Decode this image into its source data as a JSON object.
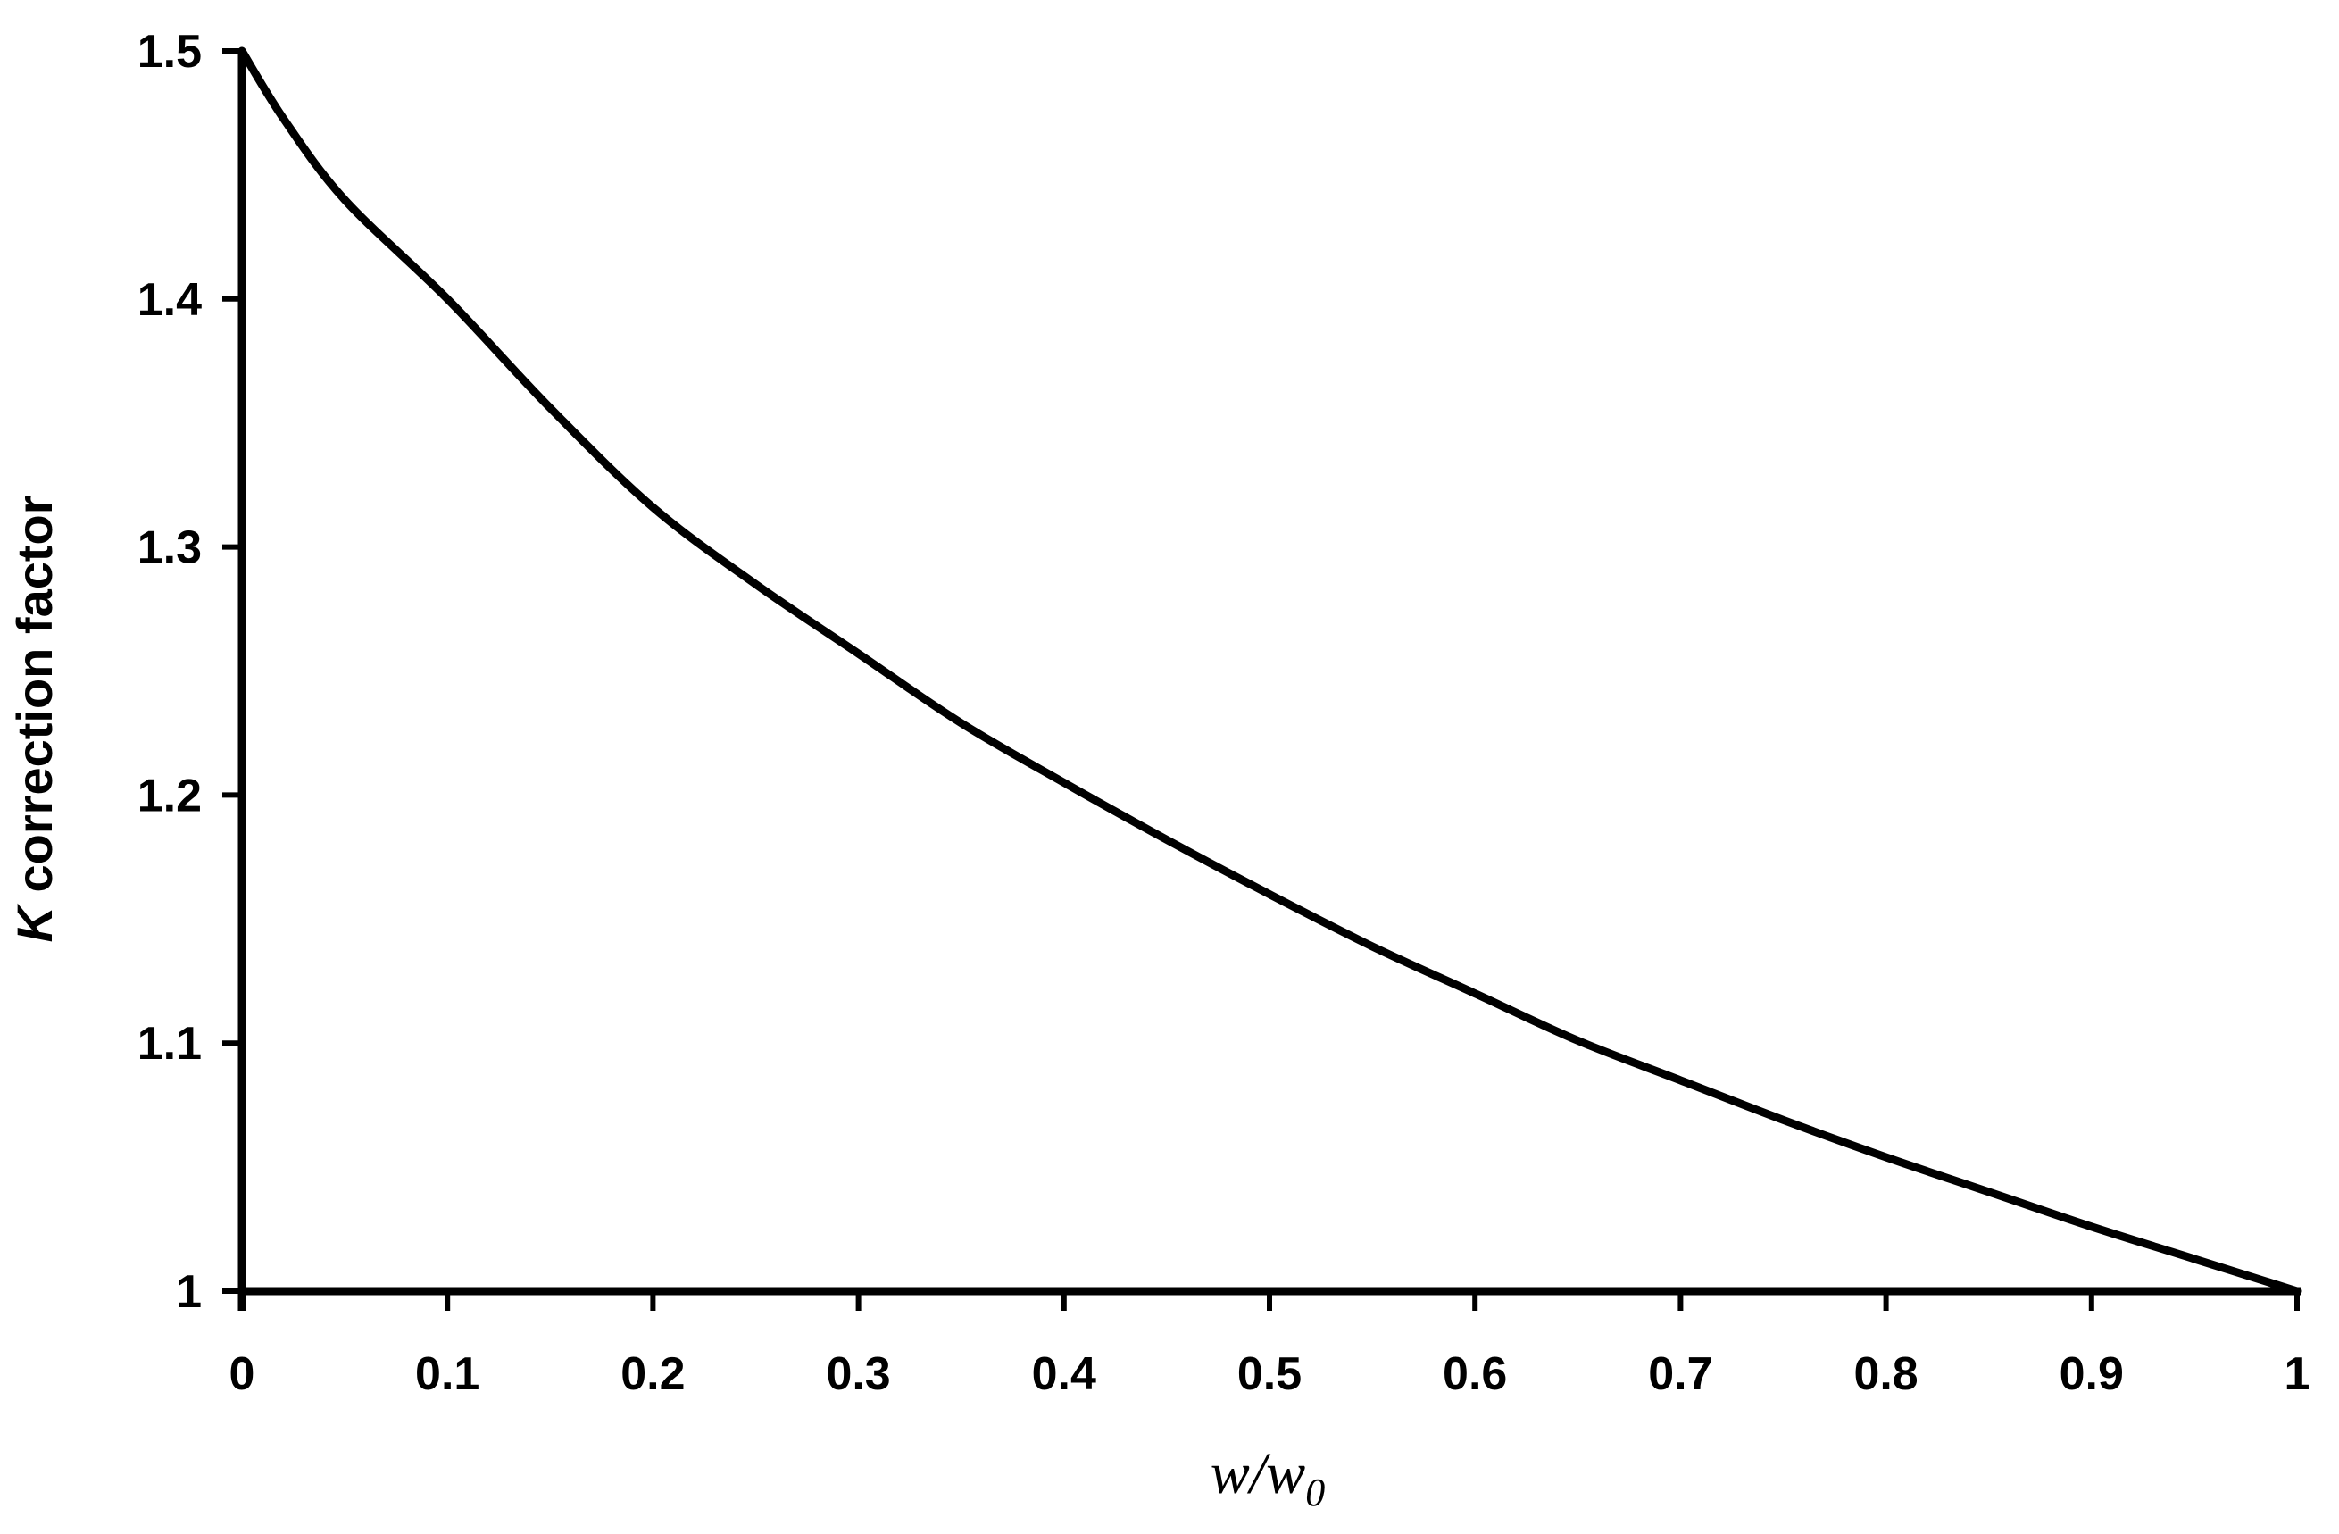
{
  "chart_data": {
    "type": "line",
    "title": "",
    "xlabel": {
      "base": "w/w",
      "subscript": "0"
    },
    "ylabel": {
      "symbol": "K",
      "text": " correction factor"
    },
    "xlim": [
      0,
      1
    ],
    "ylim": [
      1,
      1.5
    ],
    "xticks": [
      "0",
      "0.1",
      "0.2",
      "0.3",
      "0.4",
      "0.5",
      "0.6",
      "0.7",
      "0.8",
      "0.9",
      "1"
    ],
    "yticks": [
      "1",
      "1.1",
      "1.2",
      "1.3",
      "1.4",
      "1.5"
    ],
    "grid": false,
    "legend": "none",
    "line_color": "#000000",
    "series": [
      {
        "x": [
          0,
          0.02,
          0.05,
          0.1,
          0.15,
          0.2,
          0.25,
          0.3,
          0.35,
          0.4,
          0.45,
          0.5,
          0.55,
          0.6,
          0.65,
          0.7,
          0.75,
          0.8,
          0.85,
          0.9,
          0.95,
          1.0
        ],
        "y": [
          1.5,
          1.473,
          1.44,
          1.4,
          1.356,
          1.316,
          1.285,
          1.257,
          1.229,
          1.205,
          1.182,
          1.16,
          1.139,
          1.12,
          1.101,
          1.085,
          1.069,
          1.054,
          1.04,
          1.026,
          1.013,
          1.0
        ]
      }
    ]
  }
}
